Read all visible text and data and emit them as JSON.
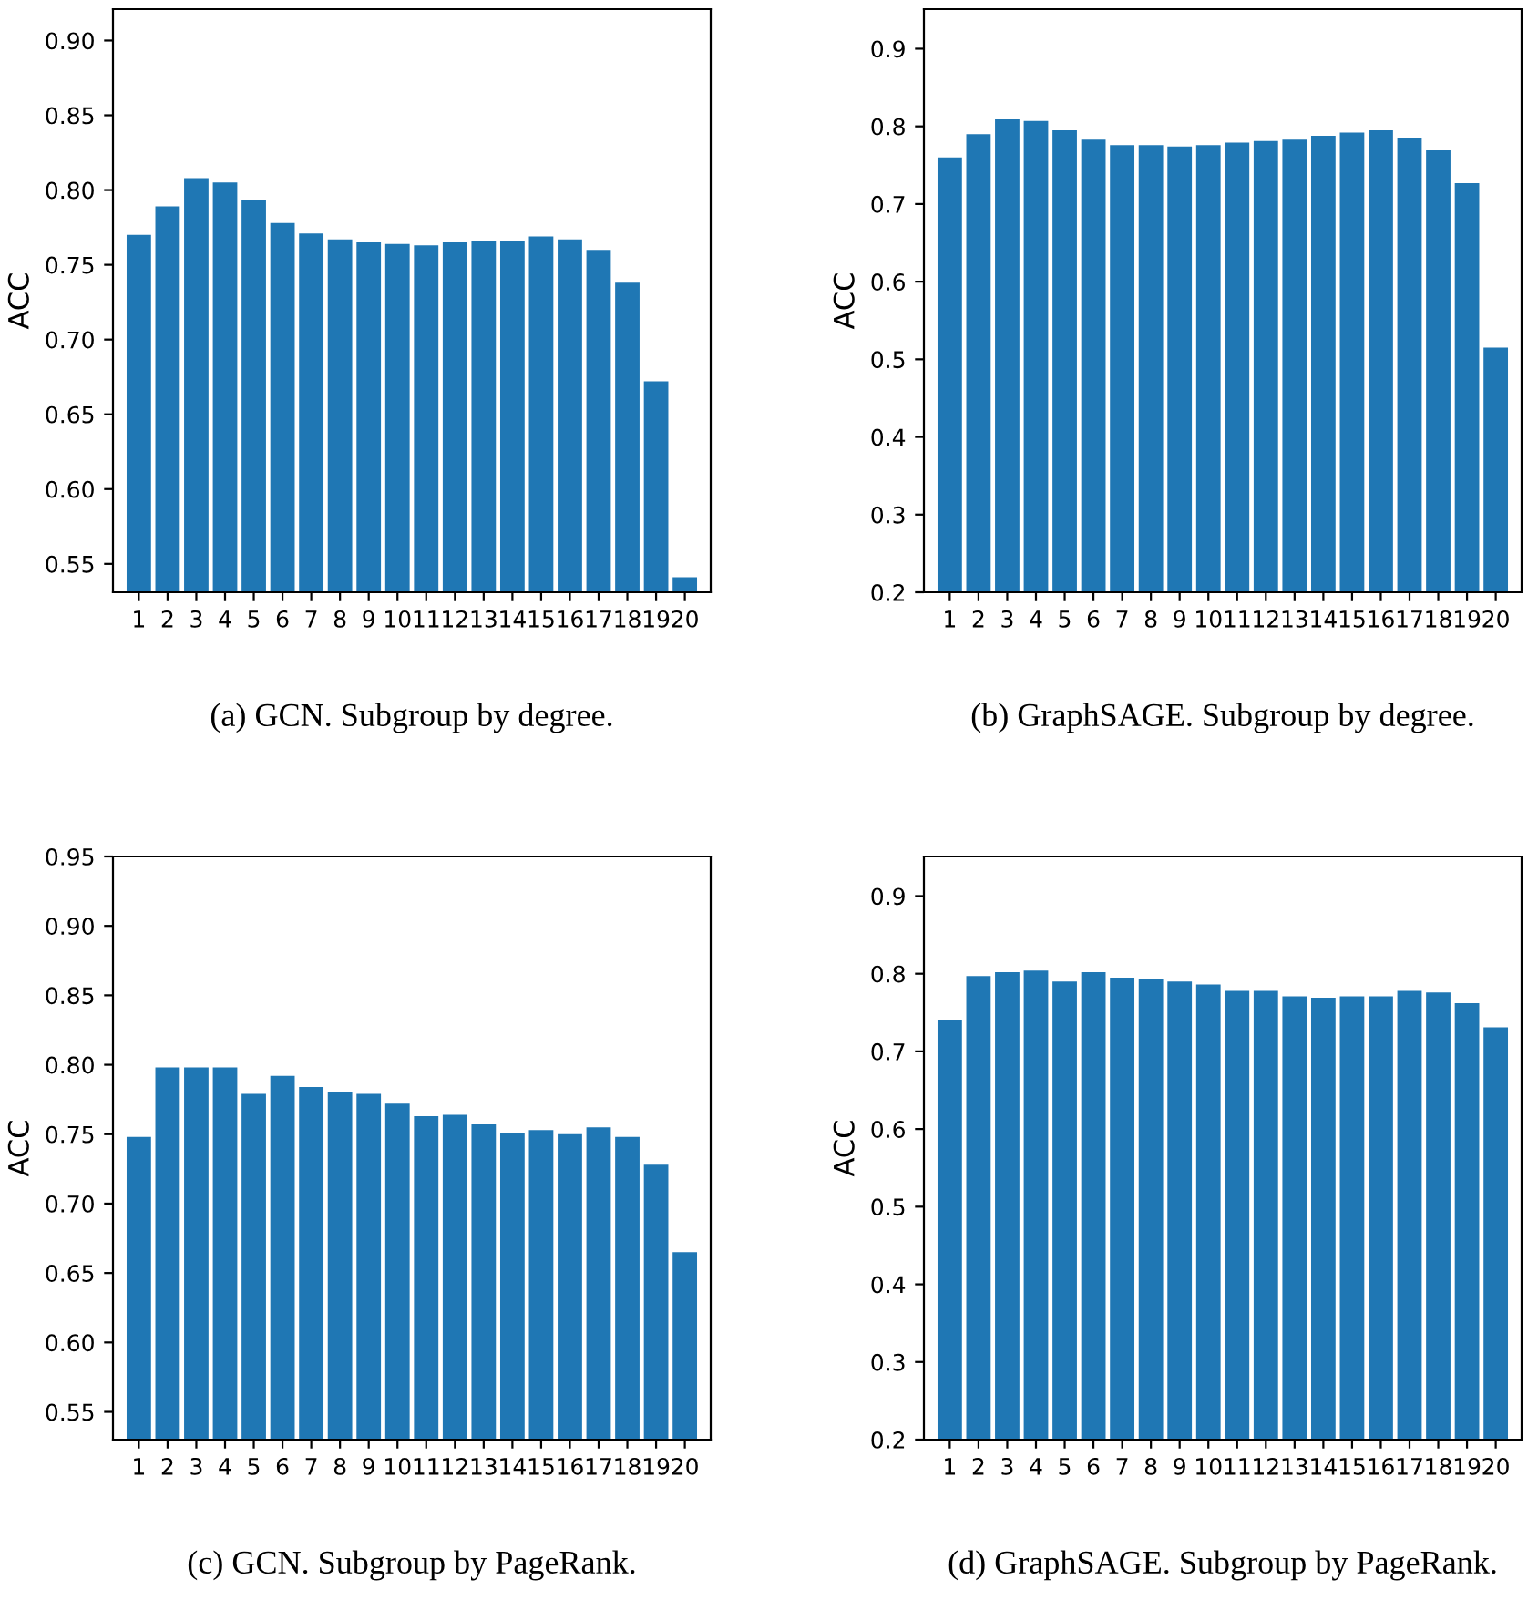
{
  "chart_data": [
    {
      "type": "bar",
      "ylabel": "ACC",
      "annotations": [
        "(a) GCN. Subgroup by degree."
      ],
      "color": "#1f77b4",
      "categories": [
        "1",
        "2",
        "3",
        "4",
        "5",
        "6",
        "7",
        "8",
        "9",
        "10",
        "11",
        "12",
        "13",
        "14",
        "15",
        "16",
        "17",
        "18",
        "19",
        "20"
      ],
      "values": [
        0.77,
        0.789,
        0.808,
        0.805,
        0.793,
        0.778,
        0.771,
        0.767,
        0.765,
        0.764,
        0.763,
        0.765,
        0.766,
        0.766,
        0.769,
        0.767,
        0.76,
        0.738,
        0.672,
        0.541
      ],
      "ylim": [
        0.531,
        0.921
      ],
      "yticks": [
        {
          "value": 0.55,
          "label": "0.55"
        },
        {
          "value": 0.6,
          "label": "0.60"
        },
        {
          "value": 0.65,
          "label": "0.65"
        },
        {
          "value": 0.7,
          "label": "0.70"
        },
        {
          "value": 0.75,
          "label": "0.75"
        },
        {
          "value": 0.8,
          "label": "0.80"
        },
        {
          "value": 0.85,
          "label": "0.85"
        },
        {
          "value": 0.9,
          "label": "0.90"
        }
      ],
      "grid": false
    },
    {
      "type": "bar",
      "ylabel": "ACC",
      "annotations": [
        "(b) GraphSAGE. Subgroup by degree."
      ],
      "color": "#1f77b4",
      "categories": [
        "1",
        "2",
        "3",
        "4",
        "5",
        "6",
        "7",
        "8",
        "9",
        "10",
        "11",
        "12",
        "13",
        "14",
        "15",
        "16",
        "17",
        "18",
        "19",
        "20"
      ],
      "values": [
        0.76,
        0.79,
        0.809,
        0.807,
        0.795,
        0.783,
        0.776,
        0.776,
        0.774,
        0.776,
        0.779,
        0.781,
        0.783,
        0.788,
        0.792,
        0.795,
        0.785,
        0.769,
        0.727,
        0.515
      ],
      "ylim": [
        0.2,
        0.951
      ],
      "yticks": [
        0.2,
        0.3,
        0.4,
        0.5,
        0.6,
        0.7,
        0.8,
        0.9
      ],
      "grid": false
    },
    {
      "type": "bar",
      "ylabel": "ACC",
      "annotations": [
        "(c) GCN. Subgroup by PageRank."
      ],
      "color": "#1f77b4",
      "categories": [
        "1",
        "2",
        "3",
        "4",
        "5",
        "6",
        "7",
        "8",
        "9",
        "10",
        "11",
        "12",
        "13",
        "14",
        "15",
        "16",
        "17",
        "18",
        "19",
        "20"
      ],
      "values": [
        0.748,
        0.798,
        0.798,
        0.798,
        0.779,
        0.792,
        0.784,
        0.78,
        0.779,
        0.772,
        0.763,
        0.764,
        0.757,
        0.751,
        0.753,
        0.75,
        0.755,
        0.748,
        0.728,
        0.665
      ],
      "ylim": [
        0.53,
        0.95
      ],
      "yticks": [
        {
          "value": 0.55,
          "label": "0.55"
        },
        {
          "value": 0.6,
          "label": "0.60"
        },
        {
          "value": 0.65,
          "label": "0.65"
        },
        {
          "value": 0.7,
          "label": "0.70"
        },
        {
          "value": 0.75,
          "label": "0.75"
        },
        {
          "value": 0.8,
          "label": "0.80"
        },
        {
          "value": 0.85,
          "label": "0.85"
        },
        {
          "value": 0.9,
          "label": "0.90"
        },
        {
          "value": 0.95,
          "label": "0.95"
        }
      ],
      "grid": false
    },
    {
      "type": "bar",
      "ylabel": "ACC",
      "annotations": [
        "(d) GraphSAGE. Subgroup by PageRank."
      ],
      "color": "#1f77b4",
      "categories": [
        "1",
        "2",
        "3",
        "4",
        "5",
        "6",
        "7",
        "8",
        "9",
        "10",
        "11",
        "12",
        "13",
        "14",
        "15",
        "16",
        "17",
        "18",
        "19",
        "20"
      ],
      "values": [
        0.741,
        0.797,
        0.802,
        0.804,
        0.79,
        0.802,
        0.795,
        0.793,
        0.79,
        0.786,
        0.778,
        0.778,
        0.771,
        0.769,
        0.771,
        0.771,
        0.778,
        0.776,
        0.762,
        0.731
      ],
      "ylim": [
        0.2,
        0.951
      ],
      "yticks": [
        0.2,
        0.3,
        0.4,
        0.5,
        0.6,
        0.7,
        0.8,
        0.9
      ],
      "grid": false
    }
  ]
}
